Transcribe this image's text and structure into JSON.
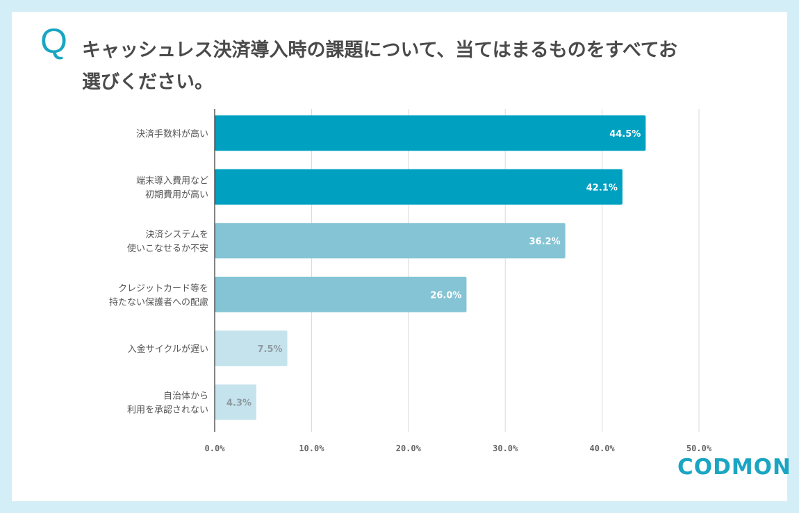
{
  "question_mark": "Q",
  "title": "キャッシュレス決済導入時の課題について、当てはまるものをすべてお選びください。",
  "logo_text": "CODMON",
  "chart_data": {
    "type": "bar",
    "orientation": "horizontal",
    "categories": [
      [
        "決済手数料が高い"
      ],
      [
        "端末導入費用など",
        "初期費用が高い"
      ],
      [
        "決済システムを",
        "使いこなせるか不安"
      ],
      [
        "クレジットカード等を",
        "持たない保護者への配慮"
      ],
      [
        "入金サイクルが遅い"
      ],
      [
        "自治体から",
        "利用を承認されない"
      ]
    ],
    "values": [
      44.5,
      42.1,
      36.2,
      26.0,
      7.5,
      4.3
    ],
    "value_labels": [
      "44.5%",
      "42.1%",
      "36.2%",
      "26.0%",
      "7.5%",
      "4.3%"
    ],
    "bar_colors": [
      "#00a0c1",
      "#00a0c1",
      "#84c4d5",
      "#84c4d5",
      "#c5e3ec",
      "#c5e3ec"
    ],
    "label_colors": [
      "#ffffff",
      "#ffffff",
      "#ffffff",
      "#ffffff",
      "#8f9aa0",
      "#8f9aa0"
    ],
    "xlim": [
      0,
      50
    ],
    "xticks": [
      "0.0%",
      "10.0%",
      "20.0%",
      "30.0%",
      "40.0%",
      "50.0%"
    ],
    "grid": true
  }
}
